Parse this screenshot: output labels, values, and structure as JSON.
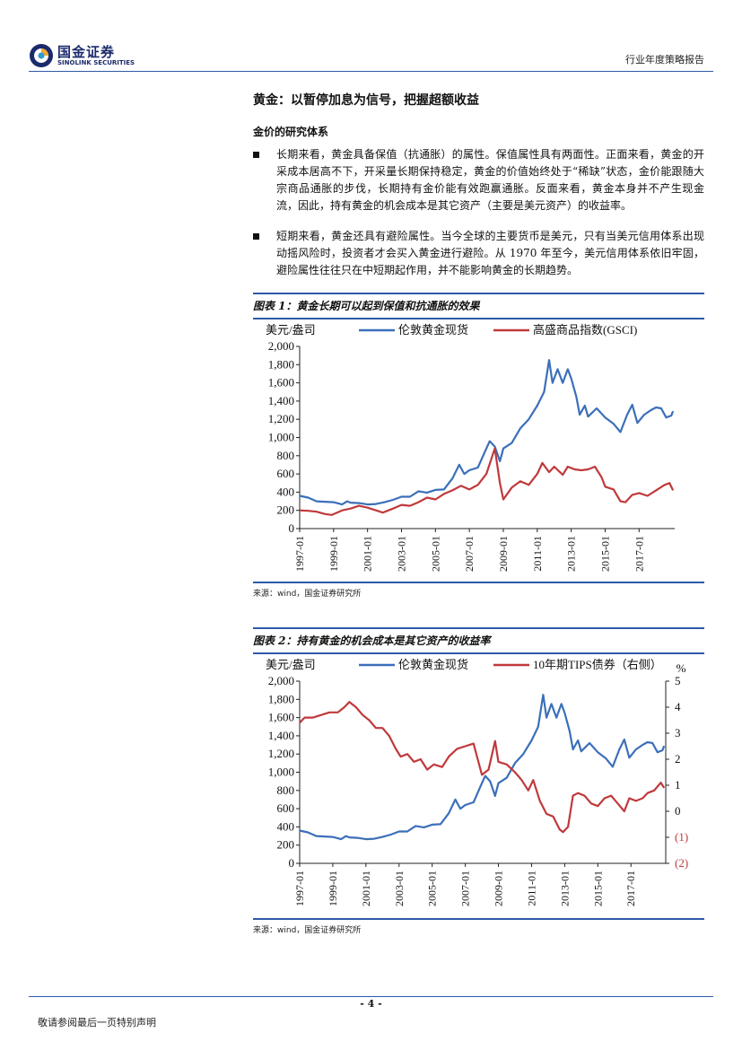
{
  "header": {
    "logo_cn": "国金证券",
    "logo_en": "SINOLINK SECURITIES",
    "right_text": "行业年度策略报告"
  },
  "section_title": "黄金：以暂停加息为信号，把握超额收益",
  "sub_title": "金价的研究体系",
  "bullets": [
    "长期来看，黄金具备保值（抗通胀）的属性。保值属性具有两面性。正面来看，黄金的开采成本居高不下，开采量长期保持稳定，黄金的价值始终处于“稀缺”状态，金价能跟随大宗商品通胀的步伐，长期持有金价能有效跑赢通胀。反面来看，黄金本身并不产生现金流，因此，持有黄金的机会成本是其它资产（主要是美元资产）的收益率。",
    "短期来看，黄金还具有避险属性。当今全球的主要货币是美元，只有当美元信用体系出现动摇风险时，投资者才会买入黄金进行避险。从 1970 年至今，美元信用体系依旧牢固，避险属性往往只在中短期起作用，并不能影响黄金的长期趋势。"
  ],
  "figure1": {
    "title": "图表 1：黄金长期可以起到保值和抗通胀的效果",
    "source": "来源：wind，国金证券研究所"
  },
  "figure2": {
    "title": "图表 2：持有黄金的机会成本是其它资产的收益率",
    "source": "来源：wind，国金证券研究所"
  },
  "chart_data": [
    {
      "type": "line",
      "ylabel": "美元/盎司",
      "ylim": [
        0,
        2000
      ],
      "yticks": [
        "0",
        "200",
        "400",
        "600",
        "800",
        "1,000",
        "1,200",
        "1,400",
        "1,600",
        "1,800",
        "2,000"
      ],
      "xticks": [
        "1997-01",
        "1999-01",
        "2001-01",
        "2003-01",
        "2005-01",
        "2007-01",
        "2009-01",
        "2011-01",
        "2013-01",
        "2015-01",
        "2017-01"
      ],
      "series": [
        {
          "name": "伦敦黄金现货",
          "color": "#3b6fba",
          "points": [
            [
              1997.0,
              360
            ],
            [
              1997.5,
              340
            ],
            [
              1998.0,
              300
            ],
            [
              1998.5,
              295
            ],
            [
              1999.0,
              290
            ],
            [
              1999.5,
              265
            ],
            [
              1999.8,
              300
            ],
            [
              2000.0,
              285
            ],
            [
              2000.5,
              280
            ],
            [
              2001.0,
              265
            ],
            [
              2001.5,
              270
            ],
            [
              2002.0,
              290
            ],
            [
              2002.5,
              315
            ],
            [
              2003.0,
              350
            ],
            [
              2003.5,
              350
            ],
            [
              2004.0,
              410
            ],
            [
              2004.5,
              395
            ],
            [
              2005.0,
              425
            ],
            [
              2005.5,
              430
            ],
            [
              2006.0,
              550
            ],
            [
              2006.4,
              700
            ],
            [
              2006.7,
              600
            ],
            [
              2007.0,
              640
            ],
            [
              2007.5,
              670
            ],
            [
              2008.0,
              880
            ],
            [
              2008.2,
              960
            ],
            [
              2008.5,
              900
            ],
            [
              2008.8,
              740
            ],
            [
              2009.0,
              880
            ],
            [
              2009.5,
              940
            ],
            [
              2010.0,
              1100
            ],
            [
              2010.5,
              1200
            ],
            [
              2011.0,
              1350
            ],
            [
              2011.4,
              1500
            ],
            [
              2011.7,
              1850
            ],
            [
              2011.9,
              1600
            ],
            [
              2012.2,
              1750
            ],
            [
              2012.5,
              1600
            ],
            [
              2012.8,
              1750
            ],
            [
              2013.0,
              1650
            ],
            [
              2013.3,
              1450
            ],
            [
              2013.5,
              1250
            ],
            [
              2013.8,
              1350
            ],
            [
              2014.0,
              1230
            ],
            [
              2014.5,
              1320
            ],
            [
              2015.0,
              1220
            ],
            [
              2015.5,
              1150
            ],
            [
              2015.9,
              1060
            ],
            [
              2016.3,
              1250
            ],
            [
              2016.6,
              1360
            ],
            [
              2016.9,
              1160
            ],
            [
              2017.3,
              1250
            ],
            [
              2017.7,
              1300
            ],
            [
              2018.0,
              1330
            ],
            [
              2018.3,
              1320
            ],
            [
              2018.6,
              1220
            ],
            [
              2018.9,
              1240
            ],
            [
              2019.0,
              1290
            ]
          ]
        },
        {
          "name": "高盛商品指数(GSCI)",
          "color": "#c0393b",
          "points": [
            [
              1997.0,
              200
            ],
            [
              1997.5,
              195
            ],
            [
              1998.0,
              185
            ],
            [
              1998.5,
              160
            ],
            [
              1998.9,
              150
            ],
            [
              1999.5,
              200
            ],
            [
              2000.0,
              220
            ],
            [
              2000.5,
              250
            ],
            [
              2001.0,
              230
            ],
            [
              2001.5,
              200
            ],
            [
              2001.9,
              175
            ],
            [
              2002.5,
              220
            ],
            [
              2003.0,
              260
            ],
            [
              2003.5,
              250
            ],
            [
              2004.0,
              290
            ],
            [
              2004.5,
              340
            ],
            [
              2005.0,
              320
            ],
            [
              2005.5,
              380
            ],
            [
              2006.0,
              420
            ],
            [
              2006.5,
              470
            ],
            [
              2007.0,
              430
            ],
            [
              2007.5,
              480
            ],
            [
              2008.0,
              600
            ],
            [
              2008.5,
              880
            ],
            [
              2008.8,
              500
            ],
            [
              2009.0,
              320
            ],
            [
              2009.5,
              450
            ],
            [
              2010.0,
              520
            ],
            [
              2010.5,
              480
            ],
            [
              2011.0,
              600
            ],
            [
              2011.3,
              720
            ],
            [
              2011.7,
              620
            ],
            [
              2012.0,
              680
            ],
            [
              2012.5,
              590
            ],
            [
              2012.8,
              680
            ],
            [
              2013.2,
              650
            ],
            [
              2013.6,
              640
            ],
            [
              2014.0,
              650
            ],
            [
              2014.4,
              680
            ],
            [
              2014.8,
              560
            ],
            [
              2015.0,
              460
            ],
            [
              2015.5,
              430
            ],
            [
              2015.9,
              300
            ],
            [
              2016.2,
              290
            ],
            [
              2016.6,
              370
            ],
            [
              2017.0,
              390
            ],
            [
              2017.5,
              360
            ],
            [
              2018.0,
              420
            ],
            [
              2018.5,
              480
            ],
            [
              2018.8,
              500
            ],
            [
              2019.0,
              420
            ]
          ]
        }
      ]
    },
    {
      "type": "line",
      "ylabel": "美元/盎司",
      "ylabel_right": "%",
      "ylim": [
        0,
        2000
      ],
      "ylim_right": [
        -2,
        5
      ],
      "yticks": [
        "0",
        "200",
        "400",
        "600",
        "800",
        "1,000",
        "1,200",
        "1,400",
        "1,600",
        "1,800",
        "2,000"
      ],
      "yticks_right": [
        "(2)",
        "(1)",
        "0",
        "1",
        "2",
        "3",
        "4",
        "5"
      ],
      "xticks": [
        "1997-01",
        "1999-01",
        "2001-01",
        "2003-01",
        "2005-01",
        "2007-01",
        "2009-01",
        "2011-01",
        "2013-01",
        "2015-01",
        "2017-01"
      ],
      "series": [
        {
          "name": "伦敦黄金现货",
          "axis": "left",
          "color": "#3b6fba",
          "points": [
            [
              1997.0,
              360
            ],
            [
              1997.5,
              340
            ],
            [
              1998.0,
              300
            ],
            [
              1998.5,
              295
            ],
            [
              1999.0,
              290
            ],
            [
              1999.5,
              265
            ],
            [
              1999.8,
              300
            ],
            [
              2000.0,
              285
            ],
            [
              2000.5,
              280
            ],
            [
              2001.0,
              265
            ],
            [
              2001.5,
              270
            ],
            [
              2002.0,
              290
            ],
            [
              2002.5,
              315
            ],
            [
              2003.0,
              350
            ],
            [
              2003.5,
              350
            ],
            [
              2004.0,
              410
            ],
            [
              2004.5,
              395
            ],
            [
              2005.0,
              425
            ],
            [
              2005.5,
              430
            ],
            [
              2006.0,
              550
            ],
            [
              2006.4,
              700
            ],
            [
              2006.7,
              600
            ],
            [
              2007.0,
              640
            ],
            [
              2007.5,
              670
            ],
            [
              2008.0,
              880
            ],
            [
              2008.2,
              960
            ],
            [
              2008.5,
              900
            ],
            [
              2008.8,
              740
            ],
            [
              2009.0,
              880
            ],
            [
              2009.5,
              940
            ],
            [
              2010.0,
              1100
            ],
            [
              2010.5,
              1200
            ],
            [
              2011.0,
              1350
            ],
            [
              2011.4,
              1500
            ],
            [
              2011.7,
              1850
            ],
            [
              2011.9,
              1600
            ],
            [
              2012.2,
              1750
            ],
            [
              2012.5,
              1600
            ],
            [
              2012.8,
              1750
            ],
            [
              2013.0,
              1650
            ],
            [
              2013.3,
              1450
            ],
            [
              2013.5,
              1250
            ],
            [
              2013.8,
              1350
            ],
            [
              2014.0,
              1230
            ],
            [
              2014.5,
              1320
            ],
            [
              2015.0,
              1220
            ],
            [
              2015.5,
              1150
            ],
            [
              2015.9,
              1060
            ],
            [
              2016.3,
              1250
            ],
            [
              2016.6,
              1360
            ],
            [
              2016.9,
              1160
            ],
            [
              2017.3,
              1250
            ],
            [
              2017.7,
              1300
            ],
            [
              2018.0,
              1330
            ],
            [
              2018.3,
              1320
            ],
            [
              2018.6,
              1220
            ],
            [
              2018.9,
              1240
            ],
            [
              2019.0,
              1290
            ]
          ]
        },
        {
          "name": "10年期TIPS债券（右侧）",
          "axis": "right",
          "color": "#c0393b",
          "points": [
            [
              1997.0,
              3.4
            ],
            [
              1997.3,
              3.6
            ],
            [
              1997.8,
              3.6
            ],
            [
              1998.3,
              3.7
            ],
            [
              1998.8,
              3.8
            ],
            [
              1999.3,
              3.8
            ],
            [
              1999.7,
              4.0
            ],
            [
              2000.0,
              4.2
            ],
            [
              2000.4,
              4.0
            ],
            [
              2000.8,
              3.7
            ],
            [
              2001.2,
              3.5
            ],
            [
              2001.6,
              3.2
            ],
            [
              2002.0,
              3.2
            ],
            [
              2002.4,
              2.9
            ],
            [
              2002.8,
              2.4
            ],
            [
              2003.1,
              2.1
            ],
            [
              2003.5,
              2.2
            ],
            [
              2003.9,
              1.9
            ],
            [
              2004.3,
              2.0
            ],
            [
              2004.7,
              1.6
            ],
            [
              2005.1,
              1.8
            ],
            [
              2005.6,
              1.7
            ],
            [
              2006.0,
              2.1
            ],
            [
              2006.5,
              2.4
            ],
            [
              2007.0,
              2.5
            ],
            [
              2007.5,
              2.6
            ],
            [
              2008.0,
              1.4
            ],
            [
              2008.4,
              1.6
            ],
            [
              2008.8,
              2.7
            ],
            [
              2009.0,
              1.9
            ],
            [
              2009.5,
              1.8
            ],
            [
              2010.0,
              1.5
            ],
            [
              2010.4,
              1.2
            ],
            [
              2010.8,
              0.8
            ],
            [
              2011.1,
              1.2
            ],
            [
              2011.5,
              0.4
            ],
            [
              2011.9,
              -0.1
            ],
            [
              2012.3,
              -0.2
            ],
            [
              2012.7,
              -0.7
            ],
            [
              2012.9,
              -0.8
            ],
            [
              2013.2,
              -0.6
            ],
            [
              2013.5,
              0.6
            ],
            [
              2013.8,
              0.7
            ],
            [
              2014.2,
              0.6
            ],
            [
              2014.6,
              0.3
            ],
            [
              2015.0,
              0.2
            ],
            [
              2015.4,
              0.5
            ],
            [
              2015.8,
              0.6
            ],
            [
              2016.2,
              0.3
            ],
            [
              2016.6,
              0.0
            ],
            [
              2016.9,
              0.5
            ],
            [
              2017.3,
              0.4
            ],
            [
              2017.7,
              0.5
            ],
            [
              2018.0,
              0.7
            ],
            [
              2018.4,
              0.8
            ],
            [
              2018.8,
              1.1
            ],
            [
              2019.0,
              0.9
            ]
          ]
        }
      ]
    }
  ],
  "footer": {
    "page": "- 4 -",
    "note": "敬请参阅最后一页特别声明"
  }
}
